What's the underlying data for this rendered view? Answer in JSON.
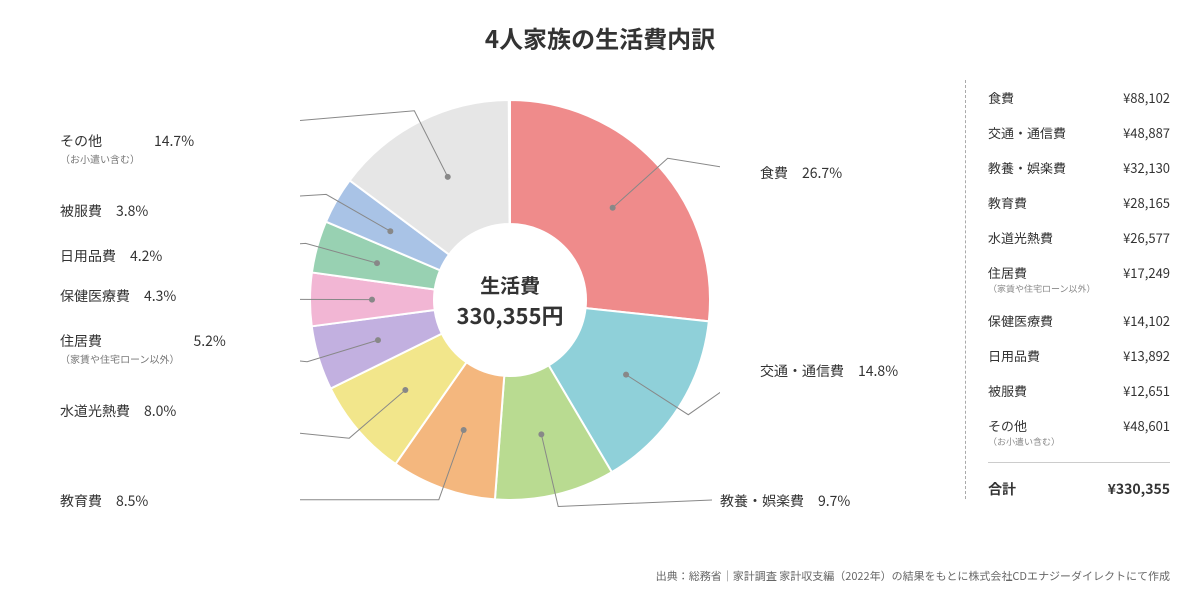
{
  "title": "4人家族の生活費内訳",
  "chart": {
    "type": "pie",
    "center_title": "生活費",
    "center_amount": "330,355円",
    "inner_radius_pct": 38,
    "outer_radius_pct": 100,
    "stroke_color": "#ffffff",
    "stroke_width": 2,
    "background_color": "#ffffff",
    "slices": [
      {
        "key": "food",
        "label": "食費",
        "sub": "",
        "pct": 26.7,
        "color": "#ef8b8b"
      },
      {
        "key": "transport",
        "label": "交通・通信費",
        "sub": "",
        "pct": 14.8,
        "color": "#8fd0d9"
      },
      {
        "key": "leisure",
        "label": "教養・娯楽費",
        "sub": "",
        "pct": 9.7,
        "color": "#b9db91"
      },
      {
        "key": "education",
        "label": "教育費",
        "sub": "",
        "pct": 8.5,
        "color": "#f4b77e"
      },
      {
        "key": "utility",
        "label": "水道光熱費",
        "sub": "",
        "pct": 8.0,
        "color": "#f2e68b"
      },
      {
        "key": "housing",
        "label": "住居費",
        "sub": "（家賃や住宅ローン以外）",
        "pct": 5.2,
        "color": "#c2b0e0"
      },
      {
        "key": "medical",
        "label": "保健医療費",
        "sub": "",
        "pct": 4.3,
        "color": "#f2b6d4"
      },
      {
        "key": "daily",
        "label": "日用品費",
        "sub": "",
        "pct": 4.2,
        "color": "#98d1b2"
      },
      {
        "key": "clothing",
        "label": "被服費",
        "sub": "",
        "pct": 3.8,
        "color": "#a9c3e6"
      },
      {
        "key": "other",
        "label": "その他",
        "sub": "（お小遣い含む）",
        "pct": 14.7,
        "color": "#e6e6e6"
      }
    ],
    "label_fontsize": 14,
    "sub_fontsize": 10
  },
  "legend": {
    "currency_prefix": "¥",
    "items": [
      {
        "label": "食費",
        "sub": "",
        "value": "88,102"
      },
      {
        "label": "交通・通信費",
        "sub": "",
        "value": "48,887"
      },
      {
        "label": "教養・娯楽費",
        "sub": "",
        "value": "32,130"
      },
      {
        "label": "教育費",
        "sub": "",
        "value": "28,165"
      },
      {
        "label": "水道光熱費",
        "sub": "",
        "value": "26,577"
      },
      {
        "label": "住居費",
        "sub": "（家賃や住宅ローン以外）",
        "value": "17,249"
      },
      {
        "label": "保健医療費",
        "sub": "",
        "value": "14,102"
      },
      {
        "label": "日用品費",
        "sub": "",
        "value": "13,892"
      },
      {
        "label": "被服費",
        "sub": "",
        "value": "12,651"
      },
      {
        "label": "その他",
        "sub": "（お小遣い含む）",
        "value": "48,601"
      }
    ],
    "total_label": "合計",
    "total_value": "330,355"
  },
  "source": "出典：総務省｜家計調査 家計収支編（2022年）の結果をもとに株式会社CDエナジーダイレクトにて作成"
}
